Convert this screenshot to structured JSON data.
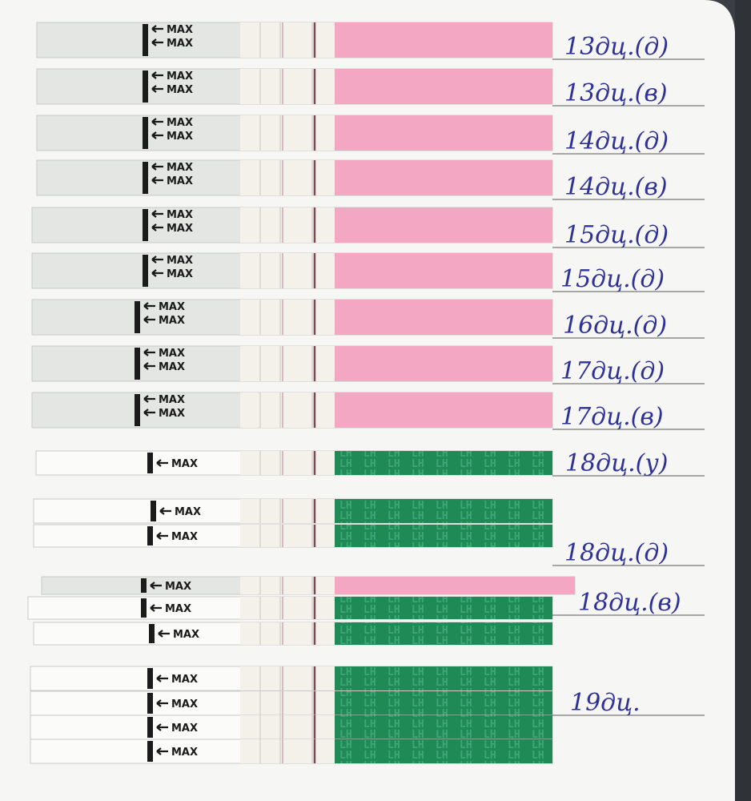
{
  "strip_text": "MAX",
  "strip_brand": "LH",
  "labels": [
    "13дц.(д)",
    "13дц.(в)",
    "14дц.(д)",
    "14дц.(в)",
    "15дц.(д)",
    "15дц.(д)",
    "16дц.(д)",
    "17дц.(д)",
    "17дц.(в)",
    "18дц.(у)",
    "18дц.(д)",
    "18дц.(в)",
    "19дц."
  ]
}
